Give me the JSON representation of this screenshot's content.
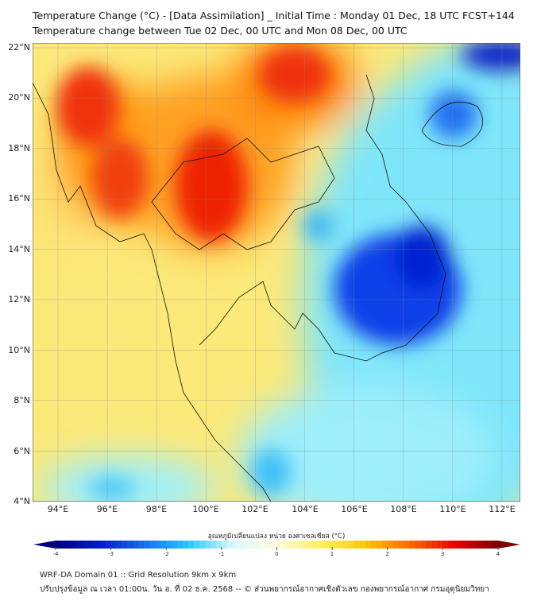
{
  "header": {
    "title_line1": "Temperature Change (°C) - [Data Assimilation] _ Initial Time : Monday 01 Dec, 18 UTC FCST+144",
    "title_line2": "Temperature change between Tue 02 Dec, 00 UTC and Mon 08 Dec, 00 UTC"
  },
  "map": {
    "lat_labels": [
      "22°N",
      "20°N",
      "18°N",
      "16°N",
      "14°N",
      "12°N",
      "10°N",
      "8°N",
      "6°N",
      "4°N"
    ],
    "lon_labels": [
      "94°E",
      "96°E",
      "98°E",
      "100°E",
      "102°E",
      "104°E",
      "106°E",
      "108°E",
      "110°E",
      "112°E"
    ]
  },
  "colorbar": {
    "label": "อุณหภูมิเปลี่ยนแปลง หน่วย องศาเซลเซียส (°C)",
    "ticks": [
      "-4",
      "-3",
      "-2",
      "-1",
      "0",
      "1",
      "2",
      "3",
      "4"
    ],
    "min": -4,
    "max": 4,
    "colors": [
      "#00007a",
      "#0018d0",
      "#1a6cf0",
      "#28c8f8",
      "#d8f8fc",
      "#fffde0",
      "#fff060",
      "#ffc800",
      "#ff6a00",
      "#f00000",
      "#7a0000"
    ]
  },
  "footer": {
    "line1": "WRF-DA Domain 01 :: Grid Resolution 9km x 9km",
    "line2": "ปรับปรุงข้อมูล ณ เวลา 01:00น. วัน อ. ที่ 02 ธ.ค. 2568 -- © ส่วนพยากรณ์อากาศเชิงตัวเลข กองพยากรณ์อากาศ กรมอุตุนิยมวิทยา"
  }
}
